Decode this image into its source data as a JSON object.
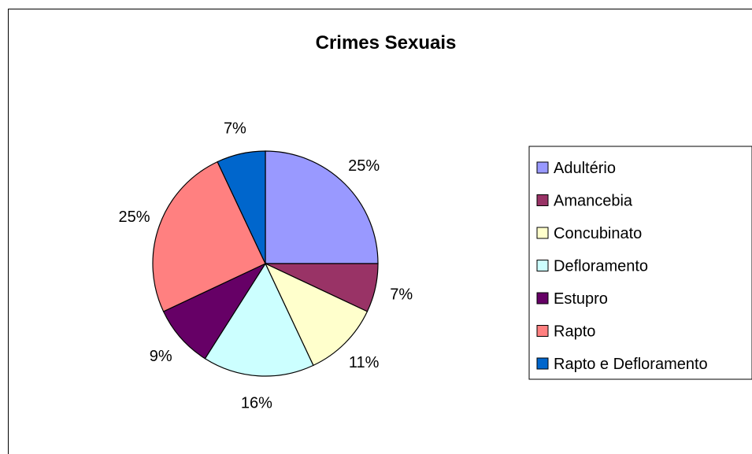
{
  "chart_data": {
    "type": "pie",
    "title": "Crimes Sexuais",
    "categories": [
      "Adultério",
      "Amancebia",
      "Concubinato",
      "Defloramento",
      "Estupro",
      "Rapto",
      "Rapto e Defloramento"
    ],
    "values": [
      25,
      7,
      11,
      16,
      9,
      25,
      7
    ],
    "labels": [
      "25%",
      "7%",
      "11%",
      "16%",
      "9%",
      "25%",
      "7%"
    ],
    "colors": [
      "#9999ff",
      "#993366",
      "#ffffcc",
      "#ccffff",
      "#660066",
      "#ff8080",
      "#0066cc"
    ],
    "legend_position": "right"
  }
}
